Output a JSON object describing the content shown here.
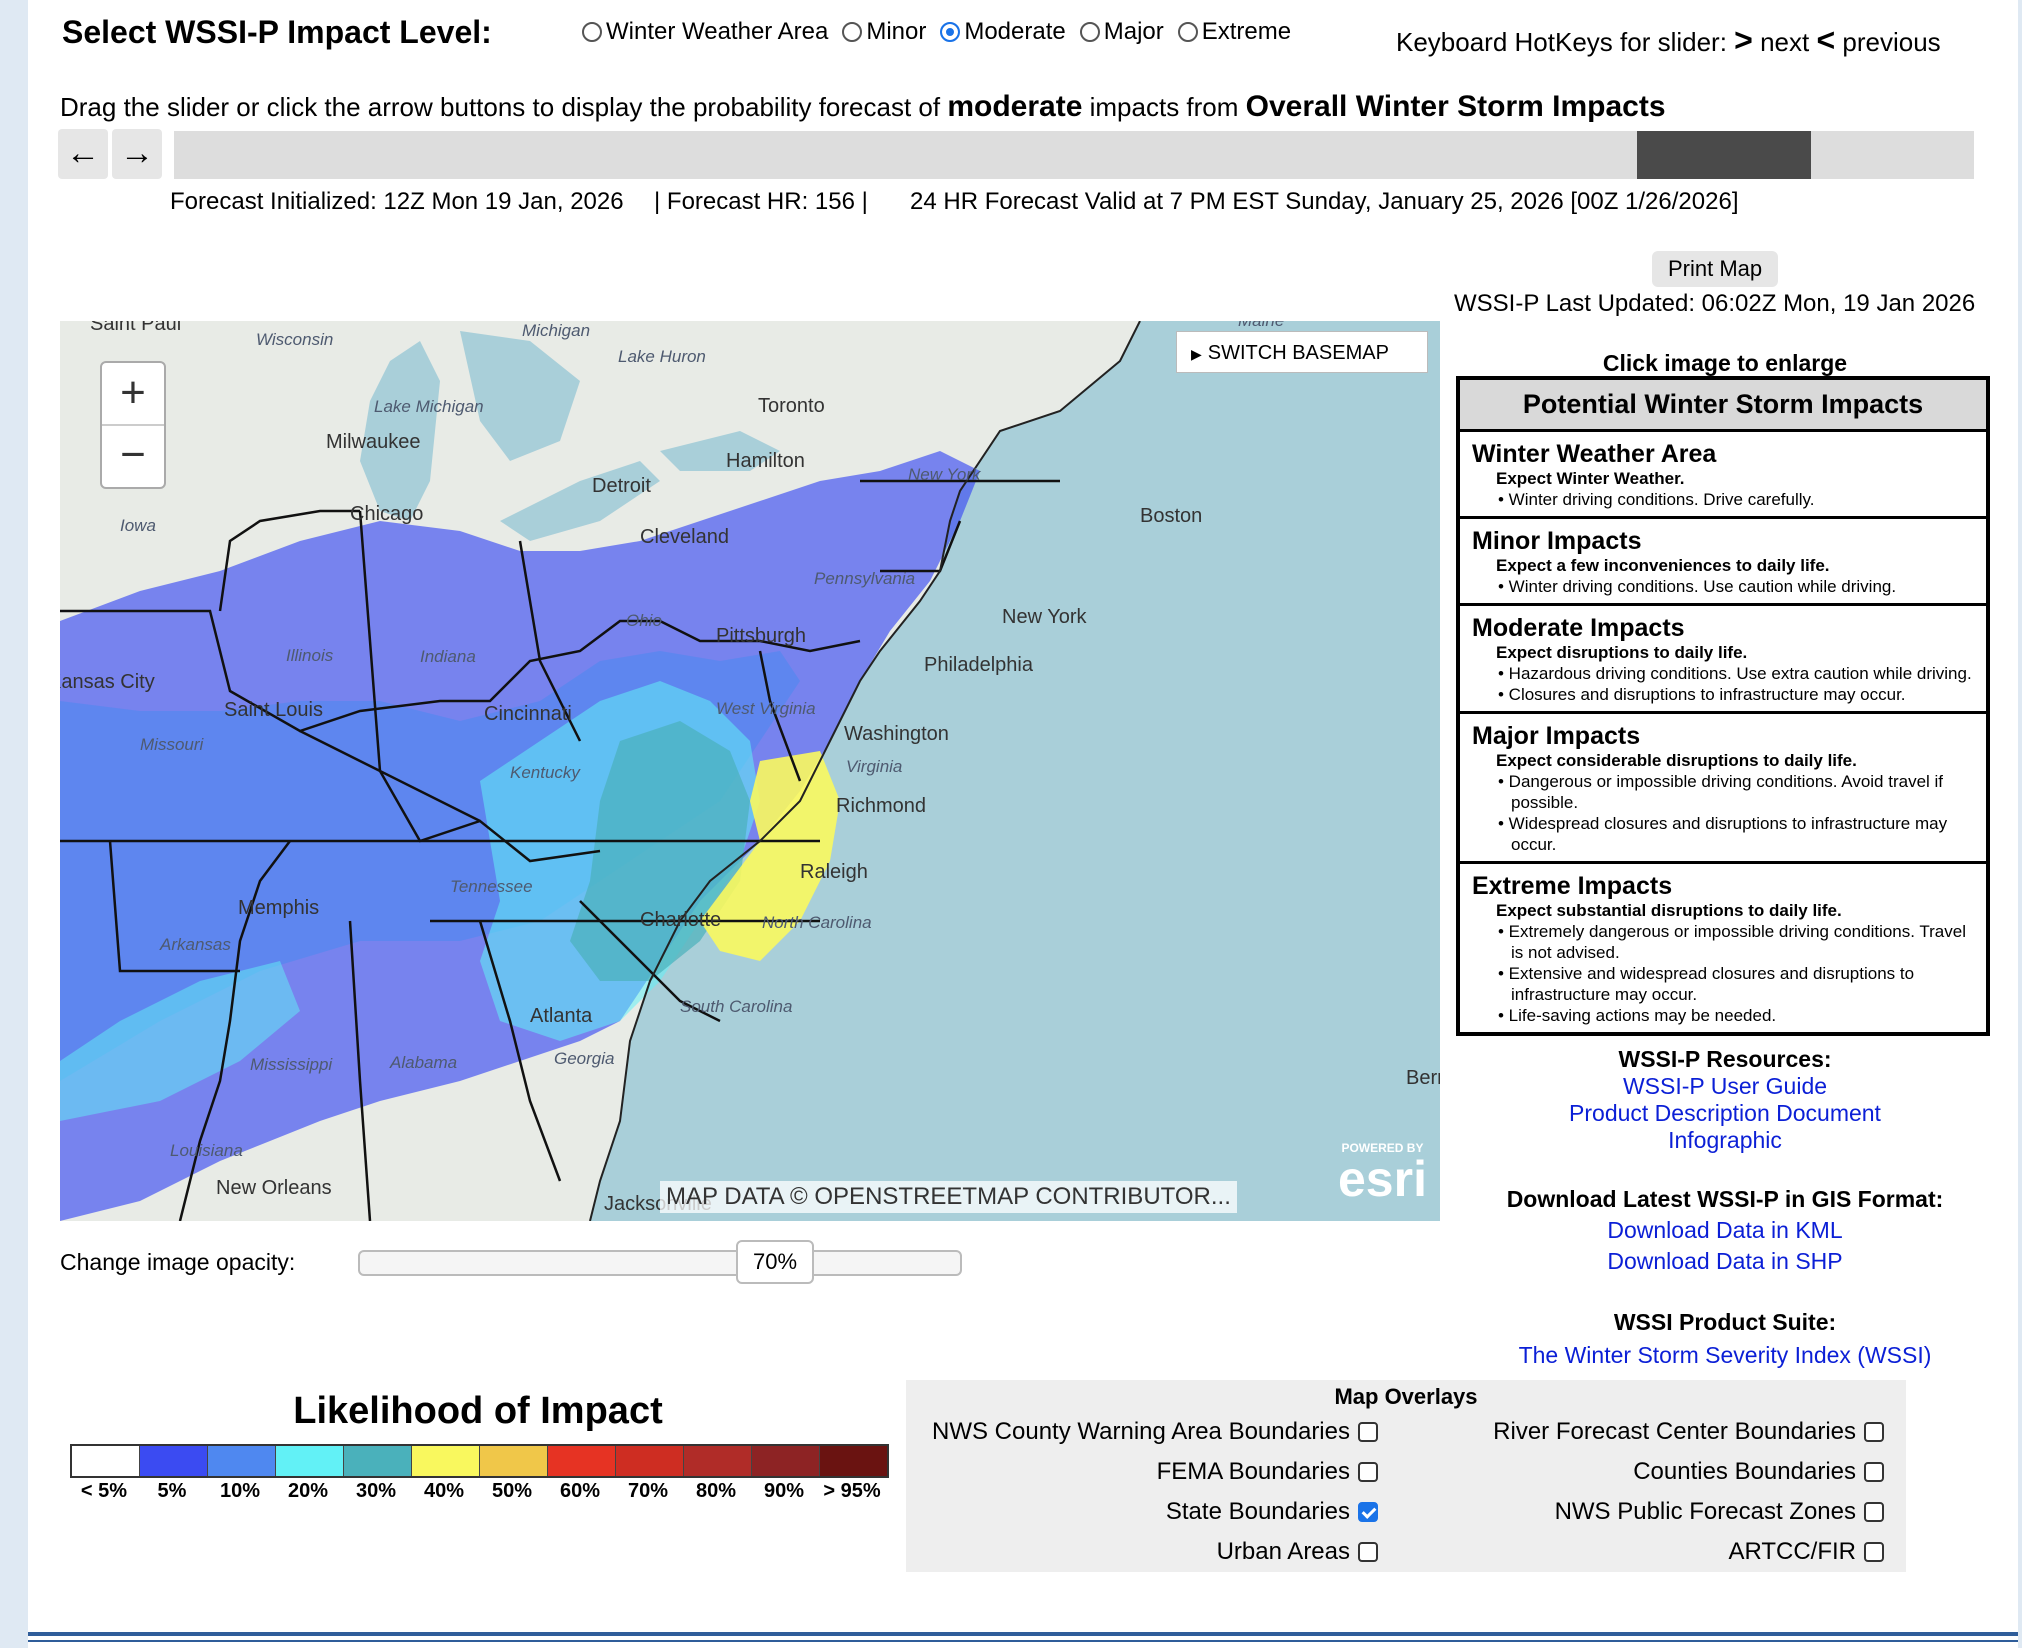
{
  "header": {
    "impact_title": "Select WSSI-P Impact Level:",
    "levels": [
      {
        "label": "Winter Weather Area",
        "selected": false
      },
      {
        "label": "Minor",
        "selected": false
      },
      {
        "label": "Moderate",
        "selected": true
      },
      {
        "label": "Major",
        "selected": false
      },
      {
        "label": "Extreme",
        "selected": false
      }
    ],
    "hotkeys_label": "Keyboard HotKeys for slider:",
    "hotkey_next_symbol": ">",
    "hotkey_next": "next",
    "hotkey_prev_symbol": "<",
    "hotkey_prev": "previous"
  },
  "instructions": {
    "prefix": "Drag the slider or click the arrow buttons to display the probability forecast of",
    "level": "moderate",
    "middle": "impacts from",
    "product": "Overall Winter Storm Impacts"
  },
  "slider": {
    "prev_icon": "←",
    "next_icon": "→",
    "position_fraction": 0.9
  },
  "forecast": {
    "initialized": "Forecast Initialized: 12Z Mon 19 Jan, 2026",
    "hour": "| Forecast HR: 156  |",
    "valid": "24 HR Forecast Valid at 7 PM EST Sunday, January 25, 2026 [00Z 1/26/2026]"
  },
  "side": {
    "print_label": "Print Map",
    "last_updated": "WSSI-P Last Updated: 06:02Z Mon, 19 Jan 2026",
    "enlarge_label": "Click image to enlarge"
  },
  "impacts_legend": {
    "title": "Potential Winter Storm Impacts",
    "sections": [
      {
        "title": "Winter Weather Area",
        "main": "Expect Winter Weather.",
        "bullets": [
          "• Winter driving conditions. Drive carefully."
        ]
      },
      {
        "title": "Minor Impacts",
        "main": "Expect a few inconveniences to daily life.",
        "bullets": [
          "• Winter driving conditions. Use caution while driving."
        ]
      },
      {
        "title": "Moderate Impacts",
        "main": "Expect disruptions to daily life.",
        "bullets": [
          "• Hazardous driving conditions. Use extra caution while driving.",
          "• Closures and disruptions to infrastructure may occur."
        ]
      },
      {
        "title": "Major Impacts",
        "main": "Expect considerable disruptions to daily life.",
        "bullets": [
          "• Dangerous or impossible driving conditions. Avoid travel if possible.",
          "• Widespread closures and disruptions to infrastructure may occur."
        ]
      },
      {
        "title": "Extreme Impacts",
        "main": "Expect substantial disruptions to daily life.",
        "bullets": [
          "• Extremely dangerous or impossible driving conditions. Travel is not advised.",
          "• Extensive and widespread closures and disruptions to infrastructure may occur.",
          "• Life-saving actions may be needed."
        ]
      }
    ]
  },
  "resources": {
    "title": "WSSI-P Resources:",
    "links": [
      "WSSI-P User Guide",
      "Product Description Document",
      "Infographic"
    ],
    "gis_title": "Download Latest WSSI-P in GIS Format:",
    "gis_links": [
      "Download Data in KML",
      "Download Data in SHP"
    ],
    "suite_title": "WSSI Product Suite:",
    "suite_link": "The Winter Storm Severity Index (WSSI)"
  },
  "map": {
    "basemap_button": "SWITCH BASEMAP",
    "zoom_in": "+",
    "zoom_out": "−",
    "attribution": "MAP DATA © OPENSTREETMAP CONTRIBUTOR...",
    "powered_by": "POWERED BY",
    "esri": "esri",
    "labels": {
      "saint_paul": "Saint Paul",
      "wisconsin": "Wisconsin",
      "michigan": "Michigan",
      "lake_huron": "Lake Huron",
      "maine": "Maine",
      "toronto": "Toronto",
      "lake_michigan": "Lake Michigan",
      "milwaukee": "Milwaukee",
      "hamilton": "Hamilton",
      "new_york_state": "New York",
      "detroit": "Detroit",
      "iowa": "Iowa",
      "chicago": "Chicago",
      "boston": "Boston",
      "cleveland": "Cleveland",
      "pennsylvania": "Pennsylvania",
      "ohio": "Ohio",
      "pittsburgh": "Pittsburgh",
      "new_york_city": "New York",
      "illinois": "Illinois",
      "indiana": "Indiana",
      "kansas_city": "Kansas City",
      "philadelphia": "Philadelphia",
      "saint_louis": "Saint Louis",
      "cincinnati": "Cincinnati",
      "west_virginia": "West Virginia",
      "missouri": "Missouri",
      "washington": "Washington",
      "kentucky": "Kentucky",
      "virginia": "Virginia",
      "richmond": "Richmond",
      "tennessee": "Tennessee",
      "raleigh": "Raleigh",
      "memphis": "Memphis",
      "arkansas": "Arkansas",
      "charlotte": "Charlotte",
      "north_carolina": "North Carolina",
      "south_carolina": "South Carolina",
      "atlanta": "Atlanta",
      "mississippi": "Mississippi",
      "alabama": "Alabama",
      "georgia": "Georgia",
      "bermuda": "Berm",
      "louisiana": "Louisiana",
      "new_orleans": "New Orleans",
      "jacksonville": "Jacksonville"
    }
  },
  "opacity": {
    "label": "Change image opacity:",
    "value": "70%",
    "value_fraction": 0.7
  },
  "likelihood": {
    "title": "Likelihood of Impact",
    "bins": [
      {
        "label": "< 5%",
        "color": "#ffffff"
      },
      {
        "label": "5%",
        "color": "#3b4bf2"
      },
      {
        "label": "10%",
        "color": "#4f88f0"
      },
      {
        "label": "20%",
        "color": "#62f1f6"
      },
      {
        "label": "30%",
        "color": "#4ab1bb"
      },
      {
        "label": "40%",
        "color": "#f9f85e"
      },
      {
        "label": "50%",
        "color": "#f0c749"
      },
      {
        "label": "60%",
        "color": "#e63323"
      },
      {
        "label": "70%",
        "color": "#ce2d22"
      },
      {
        "label": "80%",
        "color": "#b02c28"
      },
      {
        "label": "90%",
        "color": "#8d2324"
      },
      {
        "label": "> 95%",
        "color": "#6a1311"
      }
    ]
  },
  "overlays": {
    "title": "Map Overlays",
    "left": [
      {
        "label": "NWS County Warning Area Boundaries",
        "checked": false
      },
      {
        "label": "FEMA Boundaries",
        "checked": false
      },
      {
        "label": "State Boundaries",
        "checked": true
      },
      {
        "label": "Urban Areas",
        "checked": false
      }
    ],
    "right": [
      {
        "label": "River Forecast Center Boundaries",
        "checked": false
      },
      {
        "label": "Counties Boundaries",
        "checked": false
      },
      {
        "label": "NWS Public Forecast Zones",
        "checked": false
      },
      {
        "label": "ARTCC/FIR",
        "checked": false
      }
    ]
  }
}
